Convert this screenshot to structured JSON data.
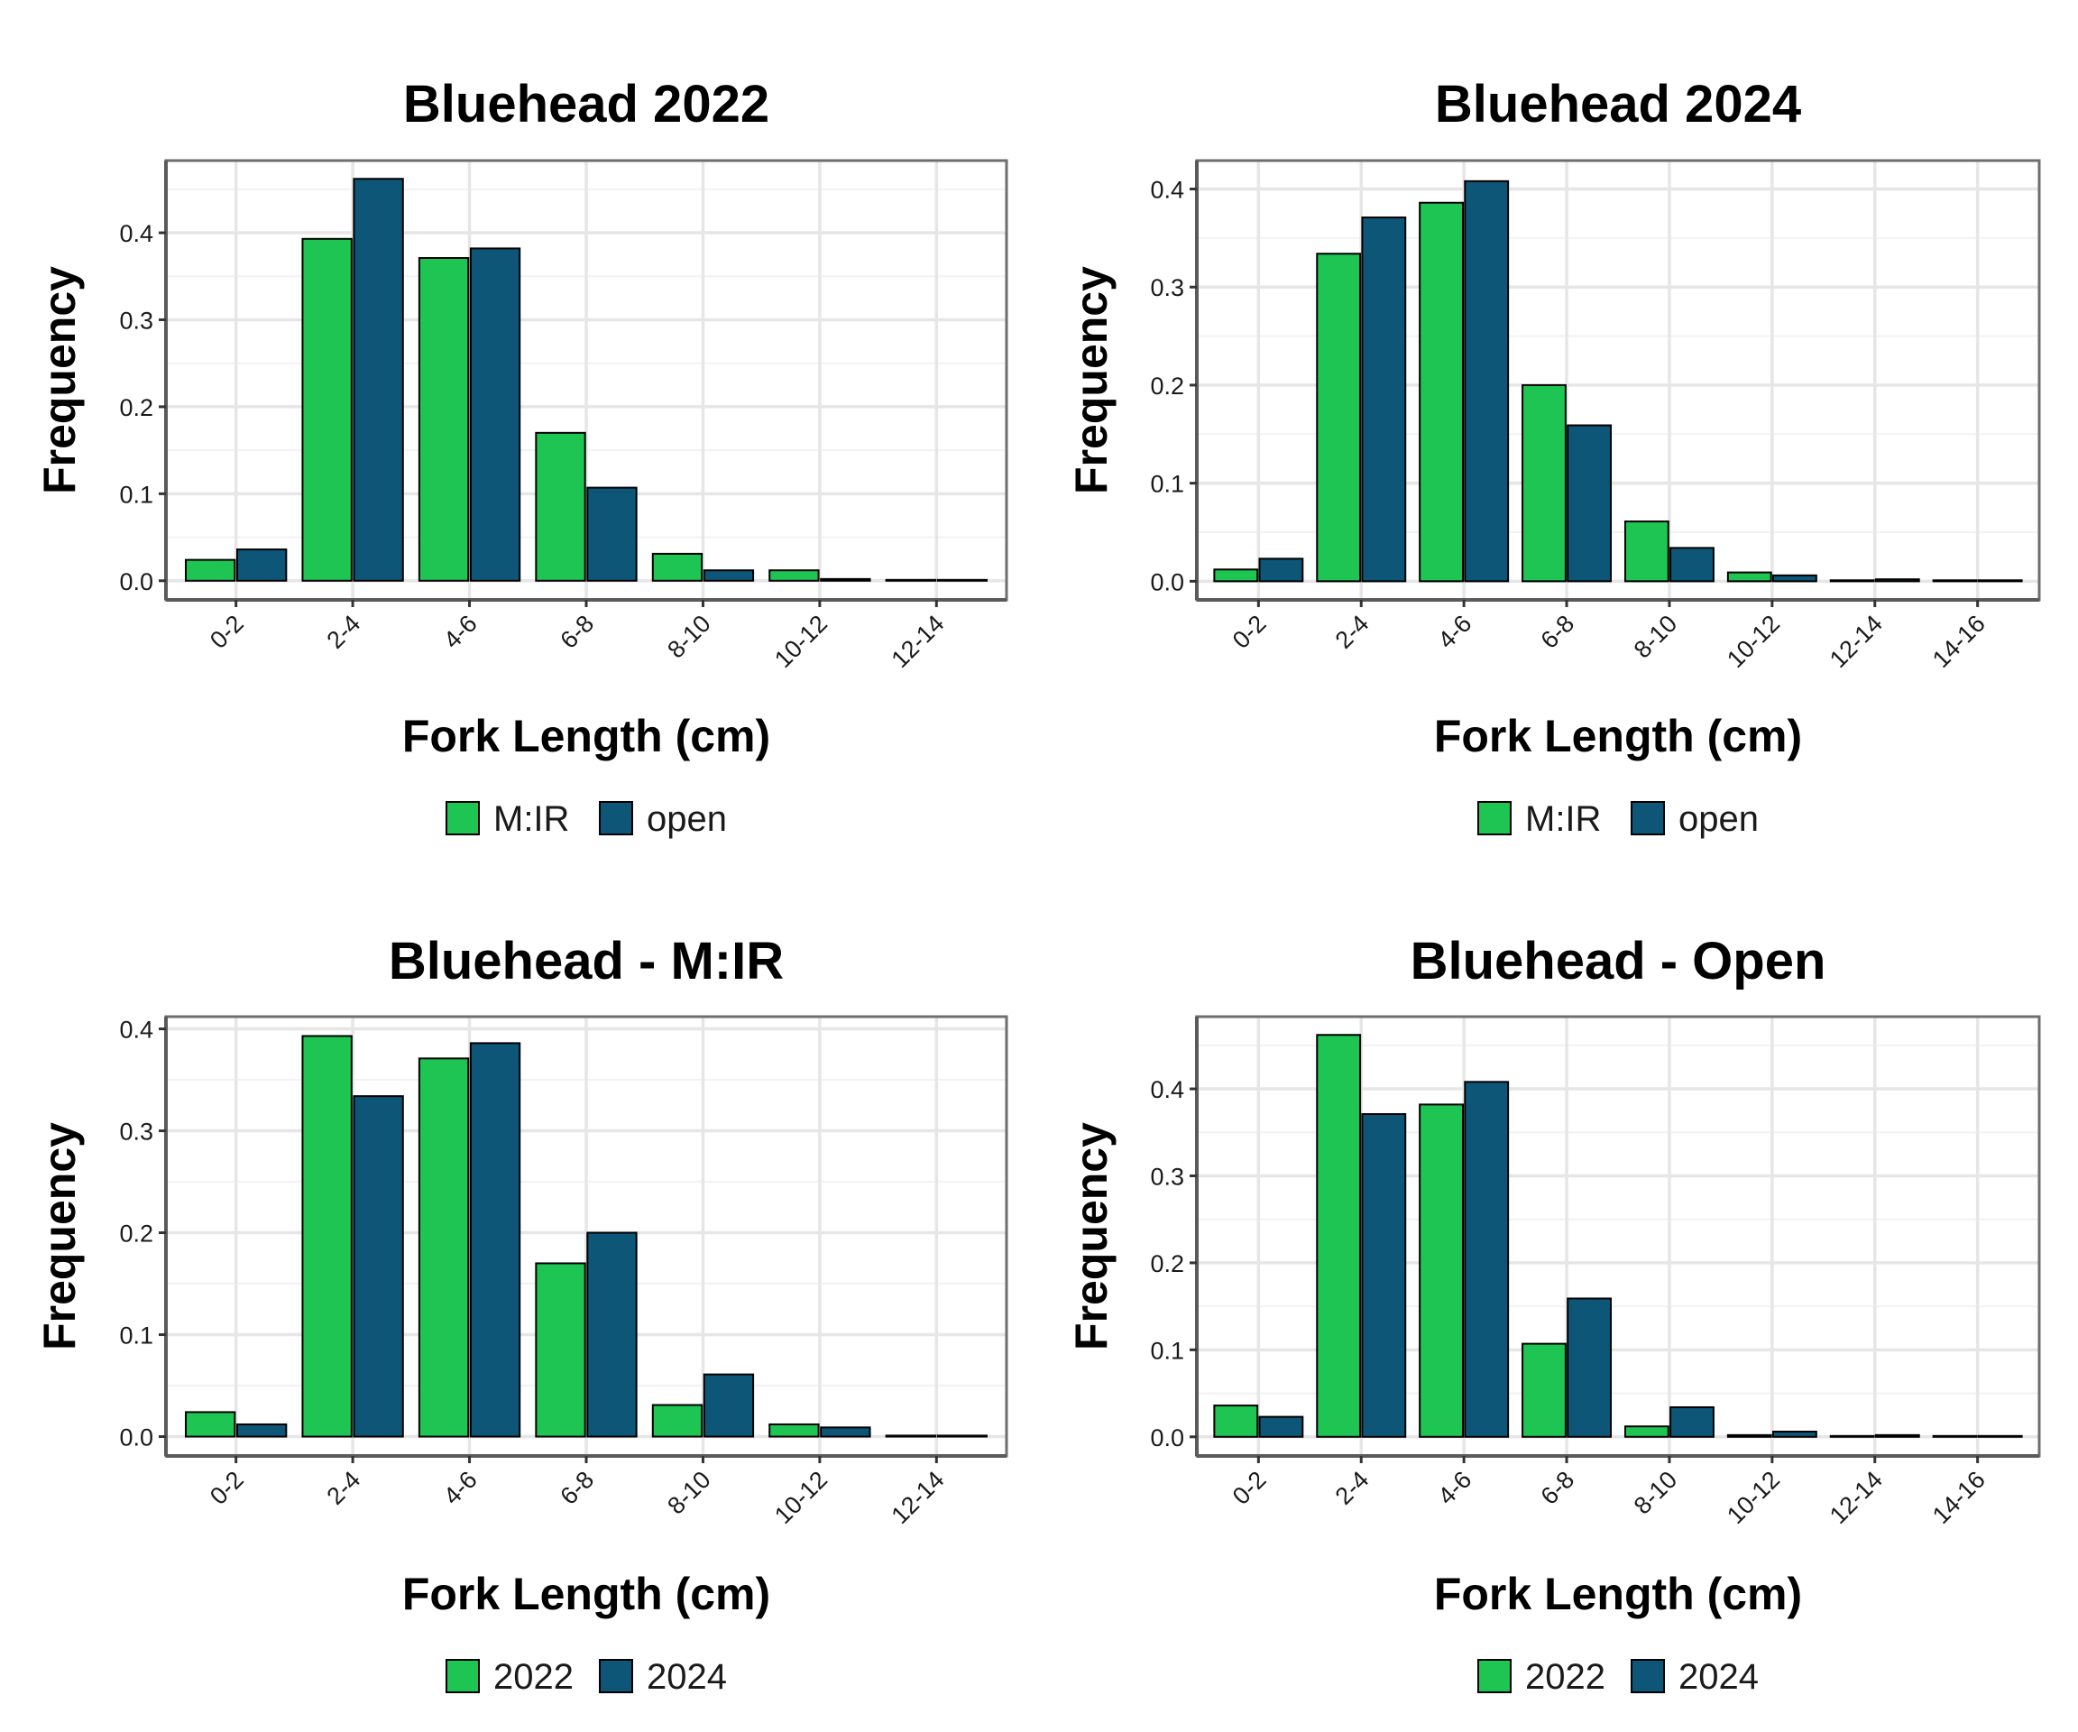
{
  "chart_data": [
    {
      "type": "bar",
      "title": "Bluehead 2022",
      "xlabel": "Fork Length (cm)",
      "ylabel": "Frequency",
      "categories": [
        "0-2",
        "2-4",
        "4-6",
        "6-8",
        "8-10",
        "10-12",
        "12-14"
      ],
      "ylim": [
        -0.022,
        0.483
      ],
      "yticks": [
        "0.0",
        "0.1",
        "0.2",
        "0.3",
        "0.4"
      ],
      "grid": true,
      "legend_position": "bottom",
      "series": [
        {
          "name": "M:IR",
          "color": "#1ec552",
          "values": [
            0.024,
            0.393,
            0.371,
            0.17,
            0.031,
            0.012,
            0.001
          ]
        },
        {
          "name": "open",
          "color": "#0d5677",
          "values": [
            0.036,
            0.462,
            0.382,
            0.107,
            0.012,
            0.002,
            0.001
          ]
        }
      ]
    },
    {
      "type": "bar",
      "title": "Bluehead 2024",
      "xlabel": "Fork Length (cm)",
      "ylabel": "Frequency",
      "categories": [
        "0-2",
        "2-4",
        "4-6",
        "6-8",
        "8-10",
        "10-12",
        "12-14",
        "14-16"
      ],
      "ylim": [
        -0.019,
        0.429
      ],
      "yticks": [
        "0.0",
        "0.1",
        "0.2",
        "0.3",
        "0.4"
      ],
      "grid": true,
      "legend_position": "bottom",
      "series": [
        {
          "name": "M:IR",
          "color": "#1ec552",
          "values": [
            0.012,
            0.334,
            0.386,
            0.2,
            0.061,
            0.009,
            0.001,
            0.001
          ]
        },
        {
          "name": "open",
          "color": "#0d5677",
          "values": [
            0.023,
            0.371,
            0.408,
            0.159,
            0.034,
            0.006,
            0.002,
            0.001
          ]
        }
      ]
    },
    {
      "type": "bar",
      "title": "Bluehead - M:IR",
      "xlabel": "Fork Length (cm)",
      "ylabel": "Frequency",
      "categories": [
        "0-2",
        "2-4",
        "4-6",
        "6-8",
        "8-10",
        "10-12",
        "12-14"
      ],
      "ylim": [
        -0.019,
        0.412
      ],
      "yticks": [
        "0.0",
        "0.1",
        "0.2",
        "0.3",
        "0.4"
      ],
      "grid": true,
      "legend_position": "bottom",
      "series": [
        {
          "name": "2022",
          "color": "#1ec552",
          "values": [
            0.024,
            0.393,
            0.371,
            0.17,
            0.031,
            0.012,
            0.001
          ]
        },
        {
          "name": "2024",
          "color": "#0d5677",
          "values": [
            0.012,
            0.334,
            0.386,
            0.2,
            0.061,
            0.009,
            0.001
          ]
        }
      ]
    },
    {
      "type": "bar",
      "title": "Bluehead - Open",
      "xlabel": "Fork Length (cm)",
      "ylabel": "Frequency",
      "categories": [
        "0-2",
        "2-4",
        "4-6",
        "6-8",
        "8-10",
        "10-12",
        "12-14",
        "14-16"
      ],
      "ylim": [
        -0.022,
        0.483
      ],
      "yticks": [
        "0.0",
        "0.1",
        "0.2",
        "0.3",
        "0.4"
      ],
      "grid": true,
      "legend_position": "bottom",
      "series": [
        {
          "name": "2022",
          "color": "#1ec552",
          "values": [
            0.036,
            0.462,
            0.382,
            0.107,
            0.012,
            0.002,
            0.001,
            0.001
          ]
        },
        {
          "name": "2024",
          "color": "#0d5677",
          "values": [
            0.023,
            0.371,
            0.408,
            0.159,
            0.034,
            0.006,
            0.002,
            0.001
          ]
        }
      ]
    }
  ]
}
